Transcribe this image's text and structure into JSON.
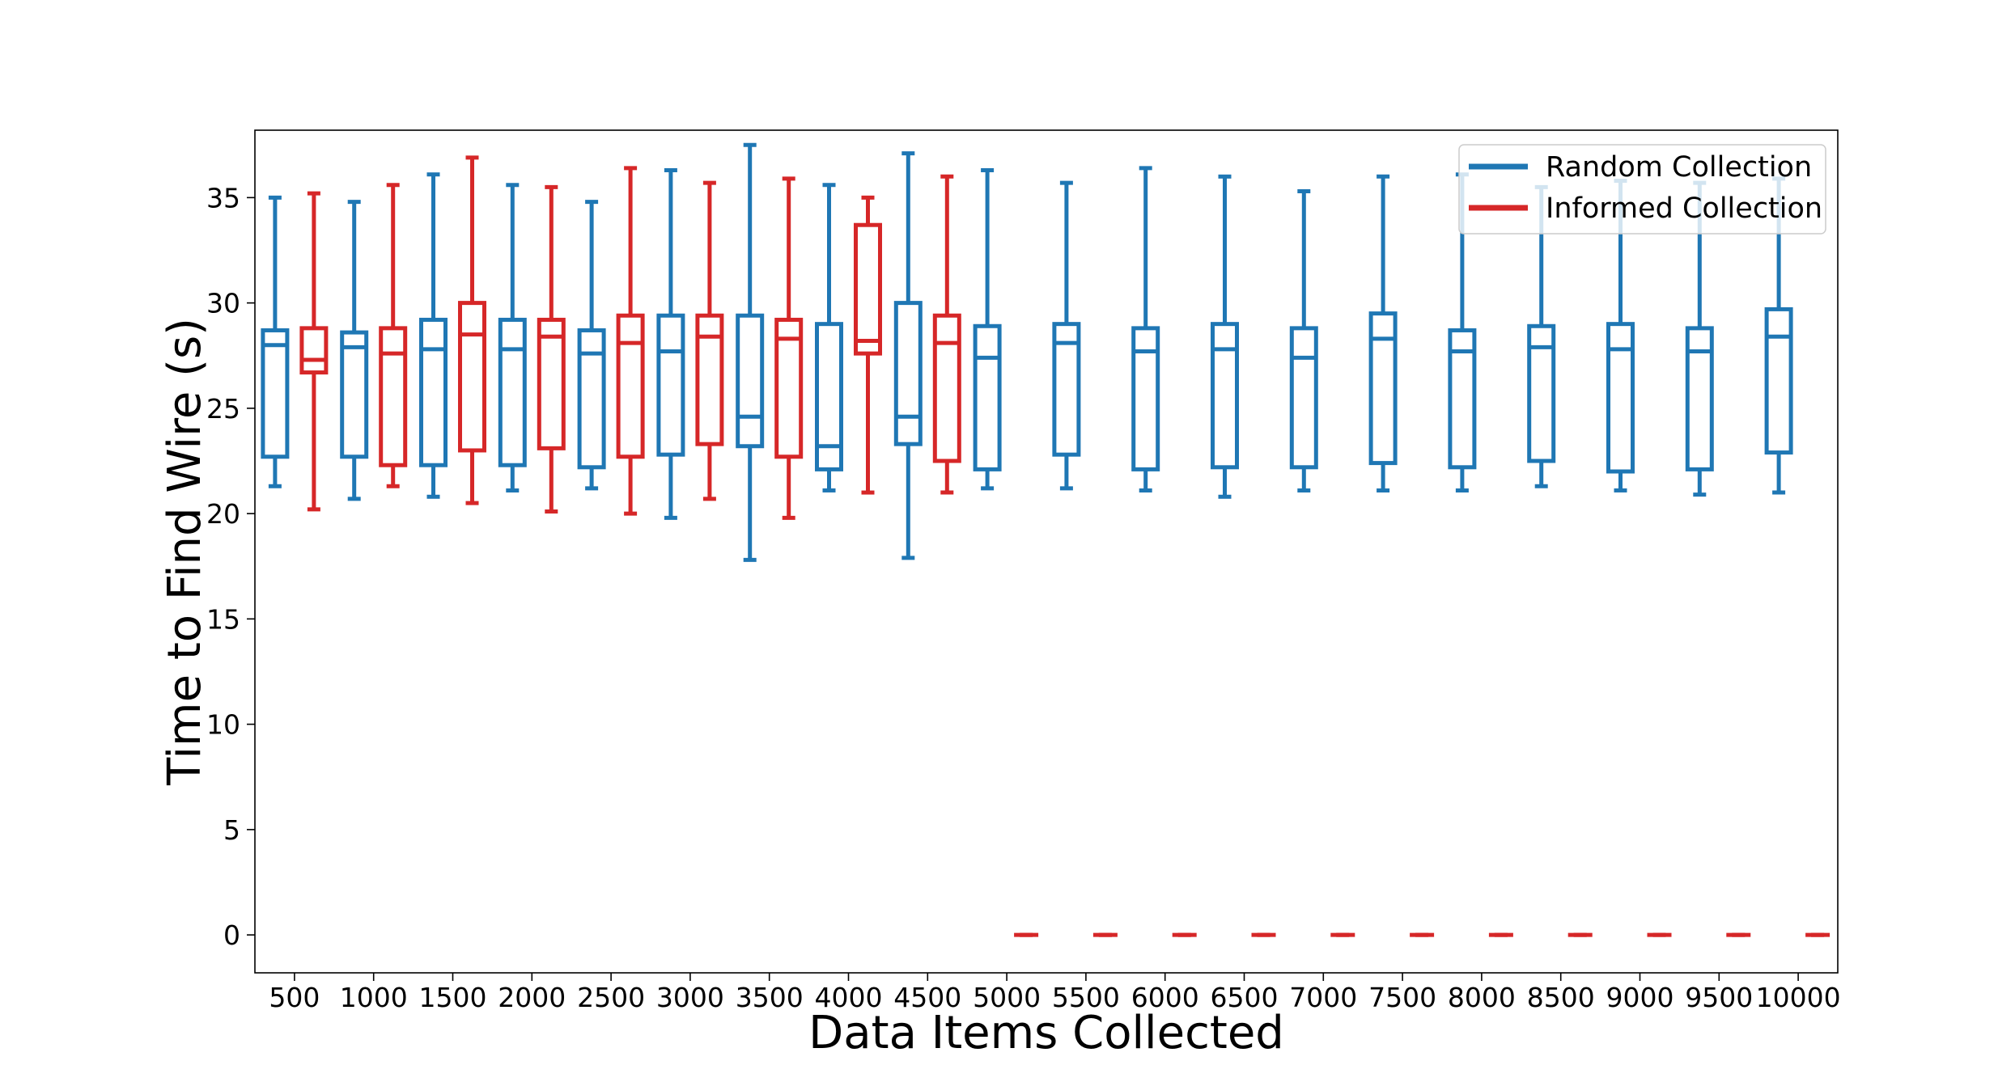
{
  "chart_data": {
    "type": "box",
    "xlabel": "Data Items Collected",
    "ylabel": "Time to Find Wire (s)",
    "categories": [
      "500",
      "1000",
      "1500",
      "2000",
      "2500",
      "3000",
      "3500",
      "4000",
      "4500",
      "5000",
      "5500",
      "6000",
      "6500",
      "7000",
      "7500",
      "8000",
      "8500",
      "9000",
      "9500",
      "10000"
    ],
    "ylim": [
      -1.8,
      38.2
    ],
    "yticks": [
      0,
      5,
      10,
      15,
      20,
      25,
      30,
      35
    ],
    "grid": false,
    "legend_position": "top-right",
    "series": [
      {
        "name": "Random Collection",
        "color": "#1f77b4",
        "boxes": [
          {
            "whislo": 21.3,
            "q1": 22.7,
            "med": 28.0,
            "q3": 28.7,
            "whishi": 35.0
          },
          {
            "whislo": 20.7,
            "q1": 22.7,
            "med": 27.9,
            "q3": 28.6,
            "whishi": 34.8
          },
          {
            "whislo": 20.8,
            "q1": 22.3,
            "med": 27.8,
            "q3": 29.2,
            "whishi": 36.1
          },
          {
            "whislo": 21.1,
            "q1": 22.3,
            "med": 27.8,
            "q3": 29.2,
            "whishi": 35.6
          },
          {
            "whislo": 21.2,
            "q1": 22.2,
            "med": 27.6,
            "q3": 28.7,
            "whishi": 34.8
          },
          {
            "whislo": 19.8,
            "q1": 22.8,
            "med": 27.7,
            "q3": 29.4,
            "whishi": 36.3
          },
          {
            "whislo": 17.8,
            "q1": 23.2,
            "med": 24.6,
            "q3": 29.4,
            "whishi": 37.5
          },
          {
            "whislo": 21.1,
            "q1": 22.1,
            "med": 23.2,
            "q3": 29.0,
            "whishi": 35.6
          },
          {
            "whislo": 17.9,
            "q1": 23.3,
            "med": 24.6,
            "q3": 30.0,
            "whishi": 37.1
          },
          {
            "whislo": 21.2,
            "q1": 22.1,
            "med": 27.4,
            "q3": 28.9,
            "whishi": 36.3
          },
          {
            "whislo": 21.2,
            "q1": 22.8,
            "med": 28.1,
            "q3": 29.0,
            "whishi": 35.7
          },
          {
            "whislo": 21.1,
            "q1": 22.1,
            "med": 27.7,
            "q3": 28.8,
            "whishi": 36.4
          },
          {
            "whislo": 20.8,
            "q1": 22.2,
            "med": 27.8,
            "q3": 29.0,
            "whishi": 36.0
          },
          {
            "whislo": 21.1,
            "q1": 22.2,
            "med": 27.4,
            "q3": 28.8,
            "whishi": 35.3
          },
          {
            "whislo": 21.1,
            "q1": 22.4,
            "med": 28.3,
            "q3": 29.5,
            "whishi": 36.0
          },
          {
            "whislo": 21.1,
            "q1": 22.2,
            "med": 27.7,
            "q3": 28.7,
            "whishi": 36.1
          },
          {
            "whislo": 21.3,
            "q1": 22.5,
            "med": 27.9,
            "q3": 28.9,
            "whishi": 35.5
          },
          {
            "whislo": 21.1,
            "q1": 22.0,
            "med": 27.8,
            "q3": 29.0,
            "whishi": 35.8
          },
          {
            "whislo": 20.9,
            "q1": 22.1,
            "med": 27.7,
            "q3": 28.8,
            "whishi": 35.7
          },
          {
            "whislo": 21.0,
            "q1": 22.9,
            "med": 28.4,
            "q3": 29.7,
            "whishi": 35.9
          }
        ]
      },
      {
        "name": "Informed Collection",
        "color": "#d62728",
        "boxes": [
          {
            "whislo": 20.2,
            "q1": 26.7,
            "med": 27.3,
            "q3": 28.8,
            "whishi": 35.2
          },
          {
            "whislo": 21.3,
            "q1": 22.3,
            "med": 27.6,
            "q3": 28.8,
            "whishi": 35.6
          },
          {
            "whislo": 20.5,
            "q1": 23.0,
            "med": 28.5,
            "q3": 30.0,
            "whishi": 36.9
          },
          {
            "whislo": 20.1,
            "q1": 23.1,
            "med": 28.4,
            "q3": 29.2,
            "whishi": 35.5
          },
          {
            "whislo": 20.0,
            "q1": 22.7,
            "med": 28.1,
            "q3": 29.4,
            "whishi": 36.4
          },
          {
            "whislo": 20.7,
            "q1": 23.3,
            "med": 28.4,
            "q3": 29.4,
            "whishi": 35.7
          },
          {
            "whislo": 19.8,
            "q1": 22.7,
            "med": 28.3,
            "q3": 29.2,
            "whishi": 35.9
          },
          {
            "whislo": 21.0,
            "q1": 27.6,
            "med": 28.2,
            "q3": 33.7,
            "whishi": 35.0
          },
          {
            "whislo": 21.0,
            "q1": 22.5,
            "med": 28.1,
            "q3": 29.4,
            "whishi": 36.0
          },
          {
            "whislo": 0,
            "q1": 0,
            "med": 0,
            "q3": 0,
            "whishi": 0
          },
          {
            "whislo": 0,
            "q1": 0,
            "med": 0,
            "q3": 0,
            "whishi": 0
          },
          {
            "whislo": 0,
            "q1": 0,
            "med": 0,
            "q3": 0,
            "whishi": 0
          },
          {
            "whislo": 0,
            "q1": 0,
            "med": 0,
            "q3": 0,
            "whishi": 0
          },
          {
            "whislo": 0,
            "q1": 0,
            "med": 0,
            "q3": 0,
            "whishi": 0
          },
          {
            "whislo": 0,
            "q1": 0,
            "med": 0,
            "q3": 0,
            "whishi": 0
          },
          {
            "whislo": 0,
            "q1": 0,
            "med": 0,
            "q3": 0,
            "whishi": 0
          },
          {
            "whislo": 0,
            "q1": 0,
            "med": 0,
            "q3": 0,
            "whishi": 0
          },
          {
            "whislo": 0,
            "q1": 0,
            "med": 0,
            "q3": 0,
            "whishi": 0
          },
          {
            "whislo": 0,
            "q1": 0,
            "med": 0,
            "q3": 0,
            "whishi": 0
          },
          {
            "whislo": 0,
            "q1": 0,
            "med": 0,
            "q3": 0,
            "whishi": 0
          }
        ]
      }
    ]
  }
}
